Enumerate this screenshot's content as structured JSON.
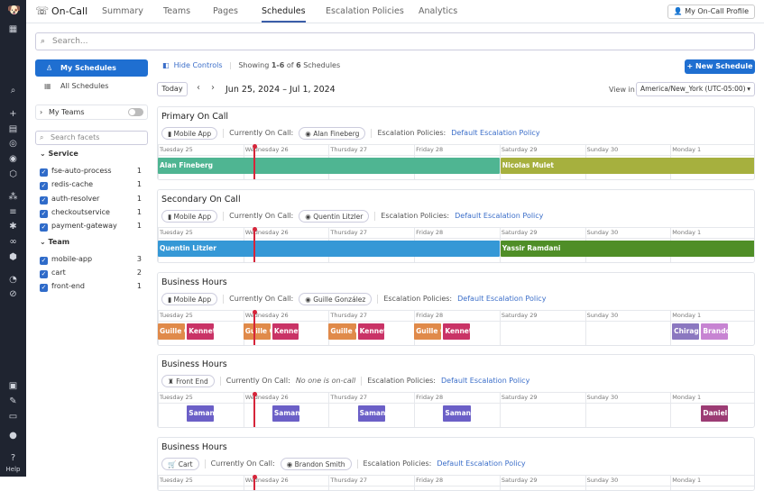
{
  "app": {
    "title": "On-Call",
    "tabs": [
      "Summary",
      "Teams",
      "Pages",
      "Schedules",
      "Escalation Policies",
      "Analytics"
    ],
    "active_tab": "Schedules",
    "profile_button": "My On-Call Profile",
    "help": "Help"
  },
  "search": {
    "placeholder": "Search..."
  },
  "left": {
    "my_schedules": "My Schedules",
    "all_schedules": "All Schedules",
    "my_teams": "My Teams",
    "my_teams_on": false,
    "facet_placeholder": "Search facets",
    "groups": [
      {
        "label": "Service",
        "items": [
          {
            "label": "fse-auto-process",
            "count": "1"
          },
          {
            "label": "redis-cache",
            "count": "1"
          },
          {
            "label": "auth-resolver",
            "count": "1"
          },
          {
            "label": "checkoutservice",
            "count": "1"
          },
          {
            "label": "payment-gateway",
            "count": "1"
          }
        ]
      },
      {
        "label": "Team",
        "items": [
          {
            "label": "mobile-app",
            "count": "3"
          },
          {
            "label": "cart",
            "count": "2"
          },
          {
            "label": "front-end",
            "count": "1"
          }
        ]
      }
    ]
  },
  "controls": {
    "hide_controls": "Hide Controls",
    "showing_prefix": "Showing ",
    "showing_range": "1-6",
    "showing_of": " of ",
    "showing_total": "6",
    "showing_suffix": " Schedules",
    "new_schedule": "New Schedule",
    "today": "Today",
    "date_range": "Jun 25, 2024 – Jul 1, 2024",
    "view_in_label": "View in",
    "timezone": "America/New_York (UTC-05:00)"
  },
  "days": [
    "Tuesday 25",
    "Wednesday 26",
    "Thursday 27",
    "Friday 28",
    "Saturday 29",
    "Sunday 30",
    "Monday 1"
  ],
  "now_day": 1.13,
  "labels": {
    "currently": "Currently On Call:",
    "escalation": "Escalation Policies:"
  },
  "schedules": [
    {
      "title": "Primary On Call",
      "team": "Mobile App",
      "oncall": "Alan Fineberg",
      "oncall_italic": false,
      "policy": "Default Escalation Policy",
      "shifts": [
        {
          "name": "Alan Fineberg",
          "start": 0,
          "end": 4,
          "color": "#4fb592"
        },
        {
          "name": "Nicolas Mulet",
          "start": 4.01,
          "end": 7,
          "color": "#a6b03e"
        }
      ]
    },
    {
      "title": "Secondary On Call",
      "team": "Mobile App",
      "oncall": "Quentin Litzler",
      "oncall_italic": false,
      "policy": "Default Escalation Policy",
      "shifts": [
        {
          "name": "Quentin Litzler",
          "start": 0,
          "end": 4,
          "color": "#3598d6"
        },
        {
          "name": "Yassir Ramdani",
          "start": 4.01,
          "end": 7,
          "color": "#4f8e27"
        }
      ]
    },
    {
      "title": "Business Hours",
      "team": "Mobile App",
      "oncall": "Guille González",
      "oncall_italic": false,
      "policy": "Default Escalation Policy",
      "shifts": [
        {
          "name": "Guille González",
          "start": 0,
          "end": 0.32,
          "color": "#e08a4a"
        },
        {
          "name": "Kenneth",
          "start": 0.34,
          "end": 0.65,
          "color": "#c93366"
        },
        {
          "name": "Guille González",
          "start": 1,
          "end": 1.32,
          "color": "#e08a4a"
        },
        {
          "name": "Kenneth",
          "start": 1.34,
          "end": 1.65,
          "color": "#c93366"
        },
        {
          "name": "Guille González",
          "start": 2,
          "end": 2.32,
          "color": "#e08a4a"
        },
        {
          "name": "Kenneth",
          "start": 2.34,
          "end": 2.65,
          "color": "#c93366"
        },
        {
          "name": "Guille González",
          "start": 3,
          "end": 3.32,
          "color": "#e08a4a"
        },
        {
          "name": "Kenneth",
          "start": 3.34,
          "end": 3.65,
          "color": "#c93366"
        },
        {
          "name": "Chirag K",
          "start": 6.02,
          "end": 6.34,
          "color": "#8b78c0"
        },
        {
          "name": "Brandon",
          "start": 6.36,
          "end": 6.67,
          "color": "#c784d2"
        }
      ]
    },
    {
      "title": "Business Hours",
      "team": "Front End",
      "oncall": "No one is on-call",
      "oncall_italic": true,
      "policy": "Default Escalation Policy",
      "shifts": [
        {
          "name": "Samantha",
          "start": 0.34,
          "end": 0.66,
          "color": "#6b5fc7"
        },
        {
          "name": "Samantha",
          "start": 1.34,
          "end": 1.66,
          "color": "#6b5fc7"
        },
        {
          "name": "Samantha",
          "start": 2.34,
          "end": 2.66,
          "color": "#6b5fc7"
        },
        {
          "name": "Samantha",
          "start": 3.34,
          "end": 3.66,
          "color": "#6b5fc7"
        },
        {
          "name": "Daniel M",
          "start": 6.36,
          "end": 6.67,
          "color": "#9c3c74"
        }
      ]
    },
    {
      "title": "Business Hours",
      "team": "Cart",
      "oncall": "Brandon Smith",
      "oncall_italic": false,
      "policy": "Default Escalation Policy",
      "shifts": []
    }
  ]
}
